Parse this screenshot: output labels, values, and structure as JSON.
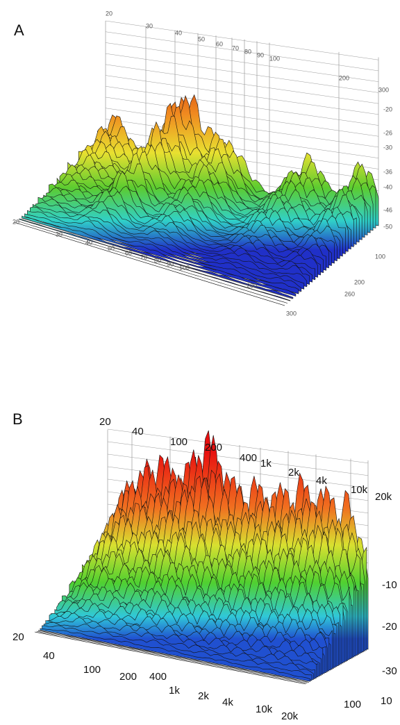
{
  "panels": [
    {
      "label": "A",
      "back_axis_labels": [
        "20",
        "30",
        "40",
        "50",
        "60",
        "70",
        "80",
        "90",
        "100",
        "200",
        "300"
      ],
      "front_axis_labels": [
        "20",
        "30",
        "40",
        "50",
        "60",
        "70",
        "80",
        "90",
        "100",
        "200",
        "300"
      ],
      "level_labels": [
        "-20",
        "-26",
        "-30",
        "-36",
        "-40",
        "-46",
        "-50"
      ],
      "depth_labels": [
        "100",
        "200",
        "260"
      ]
    },
    {
      "label": "B",
      "back_axis_labels": [
        "20",
        "40",
        "100",
        "200",
        "400",
        "1k",
        "2k",
        "4k",
        "10k",
        "20k"
      ],
      "front_axis_labels": [
        "20",
        "40",
        "100",
        "200",
        "400",
        "1k",
        "2k",
        "4k",
        "10k",
        "20k"
      ],
      "level_labels": [
        "-10",
        "-20",
        "-30"
      ],
      "depth_labels": [
        "10",
        "100"
      ]
    }
  ]
}
